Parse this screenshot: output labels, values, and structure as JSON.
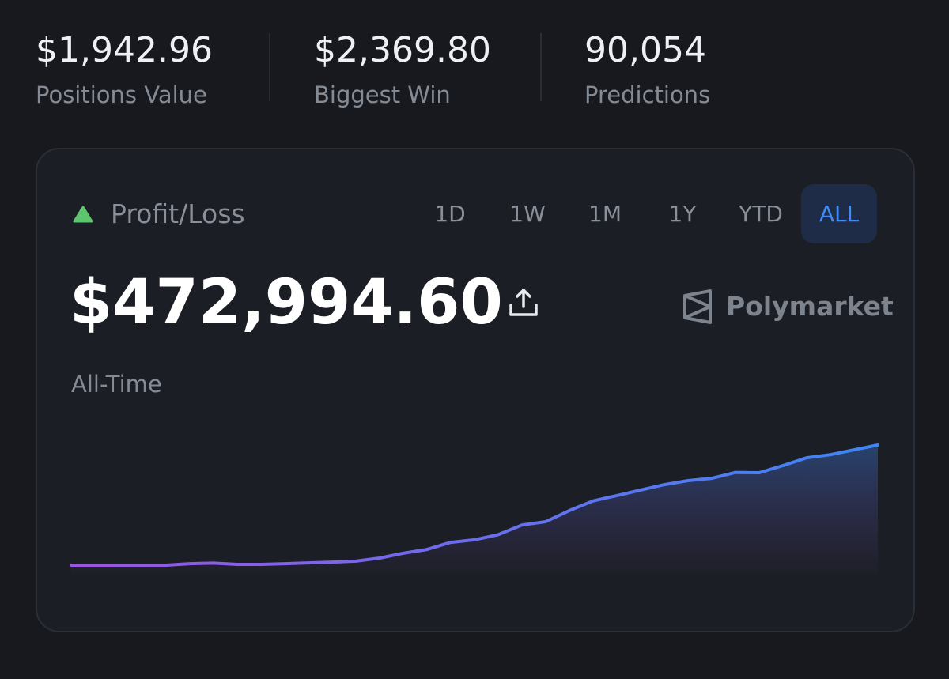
{
  "stats": [
    {
      "value": "$1,942.96",
      "label": "Positions Value"
    },
    {
      "value": "$2,369.80",
      "label": "Biggest Win"
    },
    {
      "value": "90,054",
      "label": "Predictions"
    }
  ],
  "card": {
    "title": "Profit/Loss",
    "ranges": [
      "1D",
      "1W",
      "1M",
      "1Y",
      "YTD",
      "ALL"
    ],
    "active_range": 5,
    "amount": "$472,994.60",
    "brand": "Polymarket",
    "period": "All-Time"
  },
  "chart_data": {
    "type": "area",
    "values": [
      0,
      0,
      0,
      0,
      0,
      6000,
      8000,
      3000,
      3000,
      6000,
      9000,
      12000,
      16000,
      28000,
      47000,
      62000,
      90000,
      100000,
      120000,
      158000,
      171000,
      215000,
      253000,
      274000,
      296000,
      317000,
      333000,
      342000,
      365000,
      364000,
      392000,
      423000,
      435000,
      454000,
      472994.6
    ],
    "colors": [
      "#9a55e3",
      "#3d86f5"
    ]
  }
}
